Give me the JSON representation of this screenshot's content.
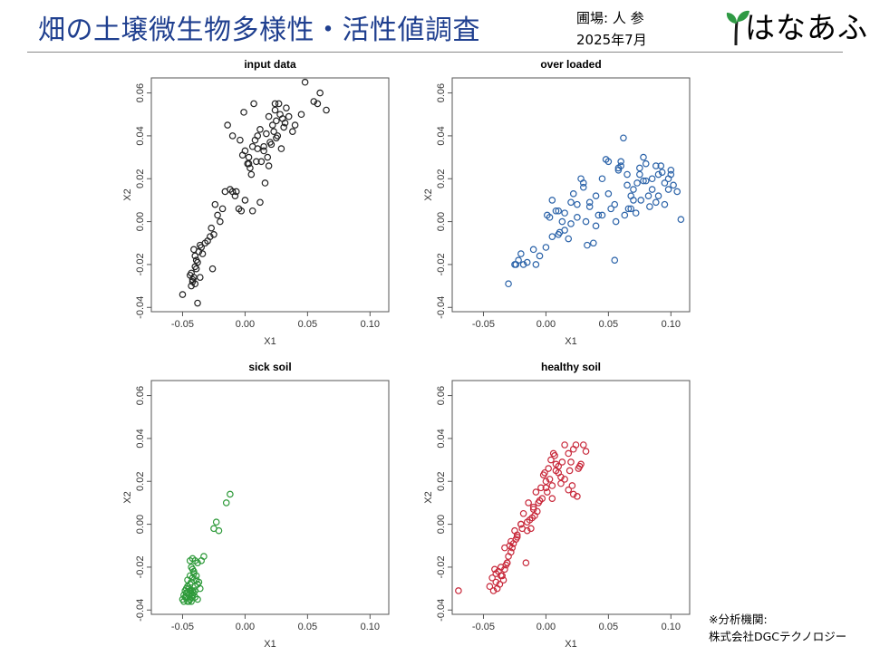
{
  "header": {
    "title": "畑の土壌微生物多様性・活性値調査",
    "field_label": "圃場: 人 参",
    "date": "2025年7月",
    "logo_text": "はなあふ"
  },
  "footer": {
    "line1": "※分析機関:",
    "line2": "株式会社DGCテクノロジー"
  },
  "chart_data": [
    {
      "type": "scatter",
      "title": "input data",
      "xlabel": "X1",
      "ylabel": "X2",
      "xlim": [
        -0.075,
        0.115
      ],
      "ylim": [
        -0.042,
        0.067
      ],
      "xticks": [
        -0.05,
        0.0,
        0.05,
        0.1
      ],
      "xticklabels": [
        "-0.05",
        "0.00",
        "0.05",
        "0.10"
      ],
      "yticks": [
        -0.04,
        -0.02,
        0.0,
        0.02,
        0.04,
        0.06
      ],
      "yticklabels": [
        "-0.04",
        "-0.02",
        "0.00",
        "0.02",
        "0.04",
        "0.06"
      ],
      "grid": false,
      "color": "#222222",
      "x": [
        -0.05,
        -0.043,
        -0.042,
        -0.044,
        -0.041,
        -0.04,
        -0.043,
        -0.039,
        -0.038,
        -0.04,
        -0.037,
        -0.041,
        -0.036,
        -0.039,
        -0.035,
        -0.034,
        -0.042,
        -0.038,
        -0.026,
        -0.03,
        -0.028,
        -0.025,
        -0.032,
        -0.027,
        -0.02,
        -0.022,
        -0.018,
        -0.024,
        -0.016,
        -0.012,
        -0.01,
        -0.008,
        -0.005,
        -0.003,
        0.0,
        0.003,
        0.005,
        0.002,
        -0.002,
        0.006,
        0.01,
        0.012,
        0.008,
        0.015,
        0.018,
        0.013,
        0.02,
        0.022,
        0.017,
        0.025,
        0.028,
        0.024,
        0.03,
        0.027,
        0.023,
        0.033,
        0.035,
        0.031,
        0.026,
        0.021,
        0.015,
        0.009,
        0.004,
        0.0,
        -0.004,
        -0.01,
        -0.014,
        0.04,
        0.048,
        0.055,
        0.058,
        0.06,
        0.065,
        0.045,
        0.038,
        0.032,
        0.029,
        0.012,
        0.007,
        0.019,
        -0.001,
        -0.007,
        0.003,
        0.006,
        0.016,
        0.025,
        0.019,
        0.01,
        0.024,
        -0.036,
        -0.04
      ],
      "y": [
        -0.034,
        -0.03,
        -0.027,
        -0.025,
        -0.026,
        -0.029,
        -0.024,
        -0.022,
        -0.019,
        -0.016,
        -0.014,
        -0.013,
        -0.011,
        -0.018,
        -0.012,
        -0.015,
        -0.028,
        -0.038,
        -0.022,
        -0.009,
        -0.007,
        -0.006,
        -0.01,
        -0.003,
        0.0,
        0.003,
        0.006,
        0.008,
        0.014,
        0.015,
        0.014,
        0.012,
        0.006,
        0.005,
        0.01,
        0.03,
        0.022,
        0.027,
        0.031,
        0.035,
        0.04,
        0.043,
        0.038,
        0.035,
        0.03,
        0.028,
        0.037,
        0.045,
        0.041,
        0.047,
        0.05,
        0.052,
        0.048,
        0.055,
        0.042,
        0.053,
        0.049,
        0.044,
        0.04,
        0.036,
        0.033,
        0.028,
        0.025,
        0.033,
        0.038,
        0.04,
        0.045,
        0.045,
        0.065,
        0.056,
        0.055,
        0.06,
        0.052,
        0.05,
        0.042,
        0.046,
        0.034,
        0.009,
        0.055,
        0.049,
        0.051,
        0.014,
        0.027,
        0.005,
        0.018,
        0.039,
        0.026,
        0.034,
        0.055,
        -0.026,
        -0.021
      ]
    },
    {
      "type": "scatter",
      "title": "over loaded",
      "xlabel": "X1",
      "ylabel": "X2",
      "xlim": [
        -0.075,
        0.115
      ],
      "ylim": [
        -0.042,
        0.067
      ],
      "xticks": [
        -0.05,
        0.0,
        0.05,
        0.1
      ],
      "xticklabels": [
        "-0.05",
        "0.00",
        "0.05",
        "0.10"
      ],
      "yticks": [
        -0.04,
        -0.02,
        0.0,
        0.02,
        0.04,
        0.06
      ],
      "yticklabels": [
        "-0.04",
        "-0.02",
        "0.00",
        "0.02",
        "0.04",
        "0.06"
      ],
      "grid": false,
      "color": "#2a62a8",
      "x": [
        -0.03,
        -0.025,
        -0.022,
        -0.02,
        -0.018,
        -0.015,
        -0.01,
        -0.008,
        -0.005,
        0.0,
        0.003,
        0.005,
        0.008,
        0.01,
        0.013,
        0.015,
        0.018,
        0.02,
        0.022,
        0.025,
        0.028,
        0.03,
        0.032,
        0.035,
        0.038,
        0.04,
        0.042,
        0.045,
        0.048,
        0.05,
        0.052,
        0.055,
        0.058,
        0.06,
        0.062,
        0.065,
        0.068,
        0.07,
        0.072,
        0.075,
        0.078,
        0.08,
        0.082,
        0.085,
        0.088,
        0.09,
        0.092,
        0.095,
        0.098,
        0.1,
        0.102,
        0.105,
        0.108,
        0.06,
        0.065,
        0.07,
        0.075,
        0.08,
        0.085,
        0.09,
        0.095,
        0.1,
        0.05,
        0.055,
        0.045,
        0.04,
        0.035,
        0.03,
        0.025,
        0.02,
        0.015,
        0.01,
        0.005,
        0.063,
        0.073,
        0.083,
        0.093,
        0.058,
        0.068,
        0.078,
        0.088,
        0.098,
        -0.024,
        0.001,
        0.011,
        0.033,
        0.056,
        0.066,
        0.076
      ],
      "y": [
        -0.029,
        -0.02,
        -0.018,
        -0.015,
        -0.02,
        -0.019,
        -0.013,
        -0.02,
        -0.016,
        -0.012,
        0.002,
        0.01,
        0.005,
        -0.006,
        0.0,
        0.004,
        -0.008,
        0.009,
        0.013,
        0.002,
        0.02,
        0.016,
        0.0,
        0.007,
        -0.01,
        0.012,
        0.003,
        0.02,
        0.029,
        0.013,
        0.006,
        -0.018,
        0.024,
        0.028,
        0.039,
        0.017,
        0.012,
        0.01,
        0.004,
        0.022,
        0.03,
        0.019,
        0.012,
        0.015,
        0.009,
        0.022,
        0.026,
        0.018,
        0.015,
        0.024,
        0.017,
        0.014,
        0.001,
        0.026,
        0.022,
        0.015,
        0.025,
        0.027,
        0.02,
        0.012,
        0.008,
        0.022,
        0.028,
        0.008,
        0.003,
        -0.002,
        0.009,
        0.018,
        0.008,
        -0.001,
        -0.004,
        0.005,
        -0.007,
        0.003,
        0.018,
        0.007,
        0.023,
        0.025,
        0.006,
        0.019,
        0.026,
        0.02,
        -0.02,
        0.003,
        -0.005,
        -0.011,
        0.0,
        0.006,
        0.01
      ]
    },
    {
      "type": "scatter",
      "title": "sick soil",
      "xlabel": "X1",
      "ylabel": "X2",
      "xlim": [
        -0.075,
        0.115
      ],
      "ylim": [
        -0.042,
        0.067
      ],
      "xticks": [
        -0.05,
        0.0,
        0.05,
        0.1
      ],
      "xticklabels": [
        "-0.05",
        "0.00",
        "0.05",
        "0.10"
      ],
      "yticks": [
        -0.04,
        -0.02,
        0.0,
        0.02,
        0.04,
        0.06
      ],
      "yticklabels": [
        "-0.04",
        "-0.02",
        "0.00",
        "0.02",
        "0.04",
        "0.06"
      ],
      "grid": false,
      "color": "#2e9a3a",
      "x": [
        -0.05,
        -0.048,
        -0.046,
        -0.045,
        -0.044,
        -0.047,
        -0.049,
        -0.043,
        -0.042,
        -0.045,
        -0.046,
        -0.044,
        -0.041,
        -0.04,
        -0.043,
        -0.048,
        -0.046,
        -0.042,
        -0.039,
        -0.038,
        -0.041,
        -0.044,
        -0.047,
        -0.045,
        -0.043,
        -0.04,
        -0.036,
        -0.037,
        -0.042,
        -0.044,
        -0.035,
        -0.038,
        -0.04,
        -0.042,
        -0.033,
        -0.039,
        -0.041,
        -0.043,
        -0.025,
        -0.023,
        -0.021,
        -0.015,
        -0.012,
        -0.045,
        -0.047,
        -0.049,
        -0.044,
        -0.042,
        -0.04,
        -0.038,
        -0.046,
        -0.043
      ],
      "y": [
        -0.035,
        -0.034,
        -0.036,
        -0.033,
        -0.035,
        -0.032,
        -0.033,
        -0.034,
        -0.031,
        -0.03,
        -0.029,
        -0.028,
        -0.032,
        -0.029,
        -0.027,
        -0.031,
        -0.026,
        -0.025,
        -0.026,
        -0.028,
        -0.023,
        -0.024,
        -0.03,
        -0.033,
        -0.036,
        -0.034,
        -0.03,
        -0.027,
        -0.021,
        -0.017,
        -0.017,
        -0.018,
        -0.017,
        -0.016,
        -0.015,
        -0.024,
        -0.022,
        -0.02,
        -0.002,
        0.001,
        -0.003,
        0.01,
        0.014,
        -0.036,
        -0.034,
        -0.036,
        -0.031,
        -0.033,
        -0.031,
        -0.035,
        -0.029,
        -0.032
      ]
    },
    {
      "type": "scatter",
      "title": "healthy soil",
      "xlabel": "X1",
      "ylabel": "X2",
      "xlim": [
        -0.075,
        0.115
      ],
      "ylim": [
        -0.042,
        0.067
      ],
      "xticks": [
        -0.05,
        0.0,
        0.05,
        0.1
      ],
      "xticklabels": [
        "-0.05",
        "0.00",
        "0.05",
        "0.10"
      ],
      "yticks": [
        -0.04,
        -0.02,
        0.0,
        0.02,
        0.04,
        0.06
      ],
      "yticklabels": [
        "-0.04",
        "-0.02",
        "0.00",
        "0.02",
        "0.04",
        "0.06"
      ],
      "grid": false,
      "color": "#c8283a",
      "x": [
        -0.07,
        -0.045,
        -0.043,
        -0.04,
        -0.038,
        -0.036,
        -0.035,
        -0.033,
        -0.031,
        -0.03,
        -0.028,
        -0.026,
        -0.034,
        -0.037,
        -0.039,
        -0.041,
        -0.032,
        -0.029,
        -0.025,
        -0.023,
        -0.02,
        -0.018,
        -0.015,
        -0.013,
        -0.01,
        -0.008,
        -0.006,
        -0.004,
        -0.002,
        0.0,
        0.002,
        0.004,
        0.006,
        0.008,
        0.01,
        0.012,
        0.015,
        0.018,
        0.02,
        0.022,
        0.024,
        0.026,
        0.028,
        0.03,
        0.032,
        0.015,
        0.012,
        0.008,
        0.005,
        0.001,
        -0.003,
        -0.007,
        -0.011,
        -0.015,
        -0.019,
        -0.023,
        -0.027,
        0.018,
        0.022,
        0.025,
        0.005,
        0.0,
        -0.005,
        -0.01,
        -0.012,
        0.01,
        -0.02,
        -0.028,
        -0.033,
        -0.036,
        -0.04,
        -0.042,
        -0.016,
        0.003,
        0.019,
        0.027,
        -0.009,
        -0.024,
        -0.031,
        -0.014,
        0.007,
        -0.001,
        0.013,
        0.021
      ],
      "y": [
        -0.031,
        -0.029,
        -0.025,
        -0.023,
        -0.022,
        -0.02,
        -0.024,
        -0.021,
        -0.018,
        -0.015,
        -0.013,
        -0.009,
        -0.026,
        -0.028,
        -0.03,
        -0.021,
        -0.019,
        -0.01,
        -0.003,
        -0.006,
        0.0,
        0.005,
        -0.003,
        0.002,
        0.008,
        0.015,
        0.01,
        0.017,
        0.023,
        0.02,
        0.026,
        0.03,
        0.033,
        0.028,
        0.024,
        0.022,
        0.037,
        0.033,
        0.029,
        0.035,
        0.037,
        0.026,
        0.028,
        0.037,
        0.034,
        0.021,
        0.019,
        0.025,
        0.018,
        0.015,
        0.012,
        0.006,
        0.003,
        0.001,
        -0.002,
        -0.005,
        -0.011,
        0.016,
        0.014,
        0.013,
        0.012,
        0.017,
        0.011,
        0.007,
        -0.002,
        0.027,
        0.0,
        -0.008,
        -0.011,
        -0.024,
        -0.027,
        -0.031,
        -0.018,
        0.021,
        0.025,
        0.027,
        0.004,
        -0.007,
        -0.018,
        0.01,
        0.032,
        0.024,
        0.029,
        0.018
      ]
    }
  ]
}
